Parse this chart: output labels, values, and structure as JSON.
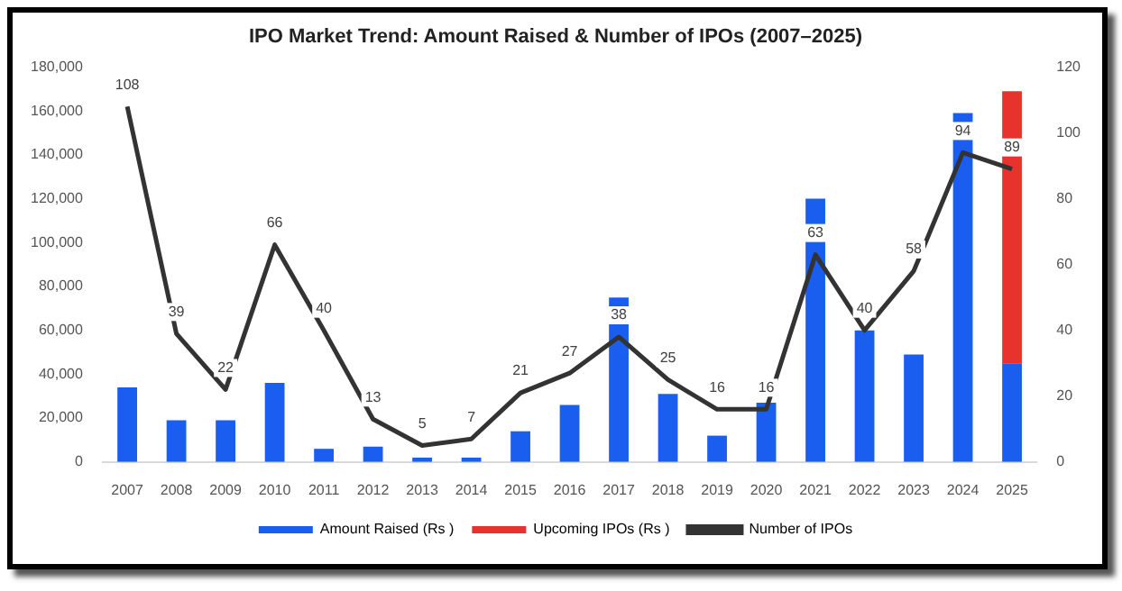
{
  "chart_data": {
    "type": "bar",
    "title": "IPO Market Trend: Amount Raised & Number of IPOs (2007–2025)",
    "categories": [
      "2007",
      "2008",
      "2009",
      "2010",
      "2011",
      "2012",
      "2013",
      "2014",
      "2015",
      "2016",
      "2017",
      "2018",
      "2019",
      "2020",
      "2021",
      "2022",
      "2023",
      "2024",
      "2025"
    ],
    "stacked": true,
    "series": [
      {
        "name": "Amount Raised (Rs )",
        "color": "#1a5ef0",
        "values": [
          34000,
          19000,
          19000,
          36000,
          6000,
          7000,
          2000,
          2000,
          14000,
          26000,
          75000,
          31000,
          12000,
          27000,
          120000,
          60000,
          49000,
          159000,
          45000
        ]
      },
      {
        "name": "Upcoming IPOs (Rs )",
        "color": "#e8322d",
        "values": [
          null,
          null,
          null,
          null,
          null,
          null,
          null,
          null,
          null,
          null,
          null,
          null,
          null,
          null,
          null,
          null,
          null,
          null,
          124000
        ]
      },
      {
        "name": "Number of IPOs",
        "type": "line",
        "axis": "y2",
        "color": "#333333",
        "marker": "none",
        "values": [
          108,
          39,
          22,
          66,
          40,
          13,
          5,
          7,
          21,
          27,
          38,
          25,
          16,
          16,
          63,
          40,
          58,
          94,
          89
        ],
        "value_labels": [
          "108",
          "39",
          "22",
          "66",
          "40",
          "13",
          "5",
          "7",
          "21",
          "27",
          "38",
          "25",
          "16",
          "16",
          "63",
          "40",
          "58",
          "94",
          "89"
        ]
      }
    ],
    "ylim": [
      0,
      180000
    ],
    "yticks": [
      0,
      {
        "value": 20000,
        "label": "20,000"
      },
      {
        "value": 40000,
        "label": "40,000"
      },
      {
        "value": 60000,
        "label": "60,000"
      },
      {
        "value": 80000,
        "label": "80,000"
      },
      {
        "value": 100000,
        "label": "100,000"
      },
      {
        "value": 120000,
        "label": "120,000"
      },
      {
        "value": 140000,
        "label": "140,000"
      },
      {
        "value": 160000,
        "label": "160,000"
      },
      {
        "value": 180000,
        "label": "180,000"
      }
    ],
    "y2lim": [
      0,
      120
    ],
    "y2ticks": [
      0,
      20,
      40,
      60,
      80,
      100,
      120
    ],
    "grid": false,
    "legend": "bottom"
  }
}
